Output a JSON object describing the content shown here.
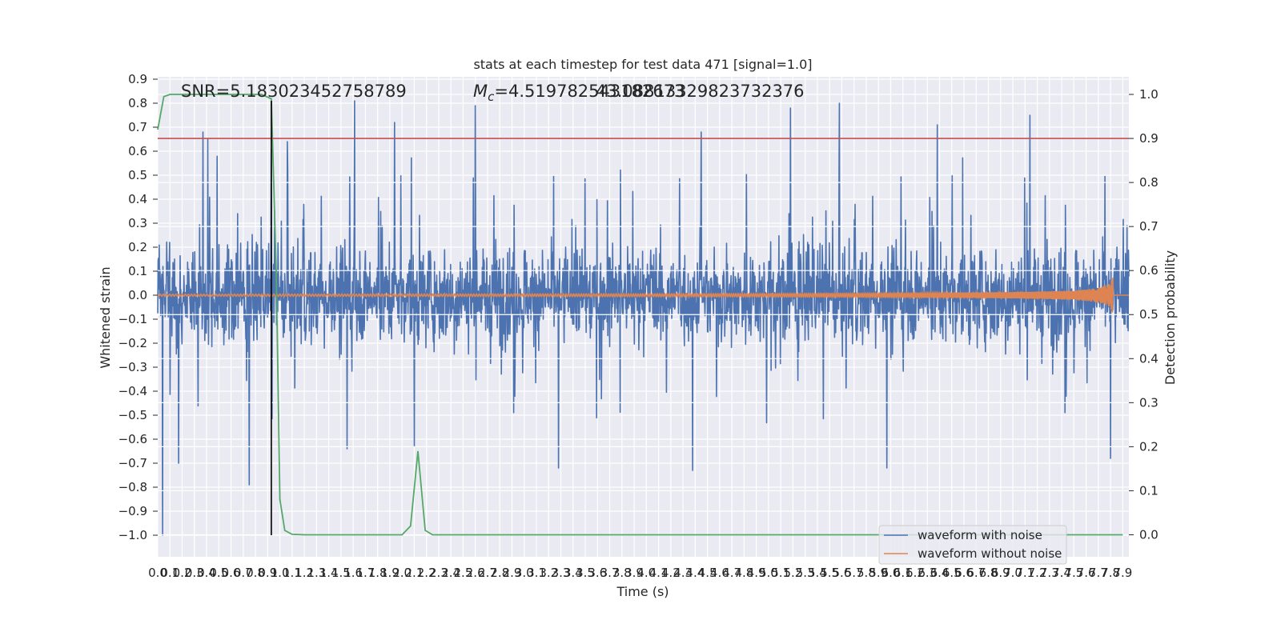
{
  "chart_data": {
    "type": "line",
    "title": "stats at each timestep for test data 471 [signal=1.0]",
    "xlabel": "Time (s)",
    "ylabel": "Whitened strain",
    "y2label": "Detection probability",
    "xlim": [
      0.0,
      7.95
    ],
    "ylim": [
      -1.09,
      0.91
    ],
    "y2lim": [
      -0.05,
      1.04
    ],
    "x_ticks": [
      "0.0",
      "0.1",
      "0.2",
      "0.3",
      "0.4",
      "0.5",
      "0.6",
      "0.7",
      "0.8",
      "0.9",
      "1.0",
      "1.1",
      "1.2",
      "1.3",
      "1.4",
      "1.5",
      "1.6",
      "1.7",
      "1.8",
      "1.9",
      "2.0",
      "2.1",
      "2.2",
      "2.3",
      "2.4",
      "2.5",
      "2.6",
      "2.7",
      "2.8",
      "2.9",
      "3.0",
      "3.1",
      "3.2",
      "3.3",
      "3.4",
      "3.5",
      "3.6",
      "3.7",
      "3.8",
      "3.9",
      "4.0",
      "4.1",
      "4.2",
      "4.3",
      "4.4",
      "4.5",
      "4.6",
      "4.7",
      "4.8",
      "4.9",
      "5.0",
      "5.1",
      "5.2",
      "5.3",
      "5.4",
      "5.5",
      "5.6",
      "5.7",
      "5.8",
      "5.9",
      "6.0",
      "6.1",
      "6.2",
      "6.3",
      "6.4",
      "6.5",
      "6.6",
      "6.7",
      "6.8",
      "6.9",
      "7.0",
      "7.1",
      "7.2",
      "7.3",
      "7.4",
      "7.5",
      "7.6",
      "7.7",
      "7.8",
      "7.9"
    ],
    "y_ticks": [
      "0.9",
      "0.8",
      "0.7",
      "0.6",
      "0.5",
      "0.4",
      "0.3",
      "0.2",
      "0.1",
      "0.0",
      "−0.1",
      "−0.2",
      "−0.3",
      "−0.4",
      "−0.5",
      "−0.6",
      "−0.7",
      "−0.8",
      "−0.9",
      "−1.0"
    ],
    "y2_ticks": [
      "1.0",
      "0.9",
      "0.8",
      "0.7",
      "0.6",
      "0.5",
      "0.4",
      "0.3",
      "0.2",
      "0.1",
      "0.0"
    ],
    "grid": true,
    "legend_position": "bottom-right",
    "annotations": {
      "snr": "SNR=5.183023452758789",
      "mc_prefix": "M",
      "mc_sub": "c",
      "mc_value": "=4.519782543182673",
      "mc_overlap": "43.08813329823732376"
    },
    "series": [
      {
        "name": "waveform with noise",
        "color": "#4c72b0",
        "description_level": "noise band roughly ±0.4 with spikes",
        "spikes": [
          [
            0.04,
            -1.0
          ],
          [
            0.17,
            -0.7
          ],
          [
            0.37,
            0.68
          ],
          [
            0.41,
            0.65
          ],
          [
            0.93,
            0.61
          ],
          [
            1.06,
            0.64
          ],
          [
            1.61,
            0.81
          ],
          [
            1.94,
            0.72
          ],
          [
            2.6,
            0.79
          ],
          [
            3.28,
            -0.72
          ],
          [
            4.45,
            0.68
          ],
          [
            4.38,
            -0.73
          ],
          [
            5.18,
            0.78
          ],
          [
            5.58,
            0.8
          ],
          [
            5.97,
            -0.72
          ],
          [
            6.38,
            0.71
          ],
          [
            7.14,
            0.75
          ],
          [
            7.8,
            -0.68
          ],
          [
            0.75,
            -0.79
          ],
          [
            1.55,
            -0.64
          ],
          [
            2.1,
            -0.63
          ]
        ]
      },
      {
        "name": "waveform without noise",
        "color": "#dd8452",
        "chirp_end": 7.82,
        "peak_amplitude": 0.1
      },
      {
        "name": "detection_probability",
        "axis": "y2",
        "color": "#55a868",
        "x": [
          0.0,
          0.05,
          0.1,
          0.2,
          0.3,
          0.4,
          0.5,
          0.6,
          0.7,
          0.8,
          0.85,
          0.93,
          0.97,
          1.0,
          1.04,
          1.1,
          1.2,
          1.3,
          1.5,
          1.8,
          2.0,
          2.07,
          2.13,
          2.19,
          2.25,
          2.4,
          3.0,
          5.0,
          7.0,
          7.9
        ],
        "y": [
          0.92,
          0.995,
          1.0,
          1.0,
          1.0,
          1.0,
          1.0,
          1.0,
          1.0,
          1.0,
          1.0,
          0.99,
          0.6,
          0.08,
          0.01,
          0.001,
          0.0,
          0.0,
          0.0,
          0.0,
          0.0,
          0.02,
          0.19,
          0.01,
          0.0,
          0.0,
          0.0,
          0.0,
          0.0,
          0.0
        ]
      }
    ],
    "threshold": {
      "axis": "y2",
      "value": 0.9,
      "color": "#c44e52"
    },
    "marker_line": {
      "x": 0.93,
      "y_bottom": -1.0,
      "y_top": 0.81,
      "color": "#000000"
    }
  },
  "legend": {
    "item1": "waveform with noise",
    "item2": "waveform without noise"
  }
}
